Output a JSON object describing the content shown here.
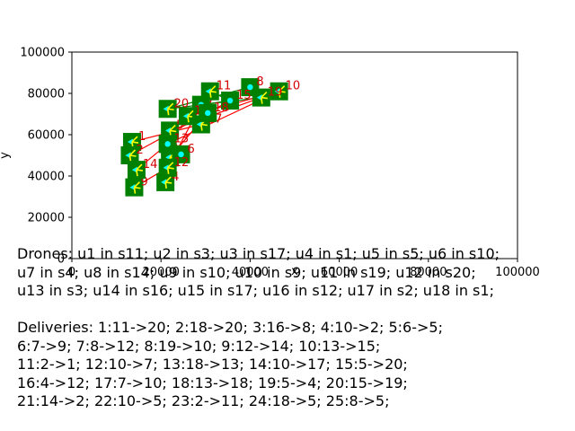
{
  "chart_data": {
    "type": "scatter",
    "title": "",
    "xlabel": "x",
    "ylabel": "y",
    "xlim": [
      0,
      100000
    ],
    "ylim": [
      0,
      100000
    ],
    "x_ticks": [
      0,
      20000,
      40000,
      60000,
      80000,
      100000
    ],
    "y_ticks": [
      0,
      20000,
      40000,
      60000,
      80000,
      100000
    ],
    "grid": false,
    "colors": {
      "station_fill": "#008000",
      "station_marker": "#00ffff",
      "drone_marker": "#ffff00",
      "route_red": "#ff0000",
      "route_green": "#008000",
      "label": "#d40000"
    },
    "stations": [
      {
        "label": "1",
        "x": 13500,
        "y": 56500
      },
      {
        "label": "2",
        "x": 13000,
        "y": 50000
      },
      {
        "label": "3",
        "x": 22000,
        "y": 49000
      },
      {
        "label": "4",
        "x": 21000,
        "y": 37000
      },
      {
        "label": "5",
        "x": 22000,
        "y": 62000
      },
      {
        "label": "6",
        "x": 24500,
        "y": 50500
      },
      {
        "label": "7",
        "x": 29000,
        "y": 74500
      },
      {
        "label": "8",
        "x": 40000,
        "y": 83000
      },
      {
        "label": "9",
        "x": 14000,
        "y": 34500
      },
      {
        "label": "10",
        "x": 46500,
        "y": 81000
      },
      {
        "label": "11",
        "x": 31000,
        "y": 81000
      },
      {
        "label": "12",
        "x": 21500,
        "y": 44000
      },
      {
        "label": "13",
        "x": 21500,
        "y": 55500
      },
      {
        "label": "14",
        "x": 14500,
        "y": 43000
      },
      {
        "label": "15",
        "x": 35500,
        "y": 76500
      },
      {
        "label": "16",
        "x": 26000,
        "y": 69000
      },
      {
        "label": "17",
        "x": 29000,
        "y": 65000
      },
      {
        "label": "18",
        "x": 30500,
        "y": 70500
      },
      {
        "label": "19",
        "x": 42500,
        "y": 78000
      },
      {
        "label": "20",
        "x": 21500,
        "y": 72500
      }
    ],
    "drones_at_stations": [
      "11",
      "3",
      "17",
      "1",
      "5",
      "10",
      "4",
      "14",
      "10",
      "9",
      "19",
      "20",
      "3",
      "16",
      "17",
      "12",
      "2",
      "1"
    ],
    "routes": [
      {
        "from": "20",
        "to": "19",
        "color": "green"
      },
      {
        "from": "20",
        "to": "8",
        "color": "green"
      },
      {
        "from": "8",
        "to": "19",
        "color": "green"
      },
      {
        "from": "13",
        "to": "10",
        "color": "red"
      },
      {
        "from": "2",
        "to": "15",
        "color": "red"
      },
      {
        "from": "5",
        "to": "19",
        "color": "red"
      },
      {
        "from": "1",
        "to": "17",
        "color": "red"
      },
      {
        "from": "9",
        "to": "12",
        "color": "red"
      },
      {
        "from": "14",
        "to": "13",
        "color": "red"
      },
      {
        "from": "3",
        "to": "18",
        "color": "red"
      },
      {
        "from": "12",
        "to": "7",
        "color": "red"
      },
      {
        "from": "16",
        "to": "10",
        "color": "red"
      },
      {
        "from": "6",
        "to": "5",
        "color": "red"
      },
      {
        "from": "4",
        "to": "12",
        "color": "red"
      },
      {
        "from": "11",
        "to": "15",
        "color": "green"
      },
      {
        "from": "7",
        "to": "15",
        "color": "green"
      }
    ]
  },
  "caption": {
    "drones_lines": [
      "Drones: u1 in s11; u2 in s3; u3 in s17; u4 in s1; u5 in s5; u6 in s10;",
      "u7 in s4; u8 in s14; u9 in s10; u10 in s9; u11 in s19; u12 in s20;",
      "u13 in s3; u14 in s16; u15 in s17; u16 in s12; u17 in s2; u18 in s1;"
    ],
    "deliveries_lines": [
      "Deliveries: 1:11->20; 2:18->20; 3:16->8; 4:10->2; 5:6->5;",
      "6:7->9; 7:8->12; 8:19->10; 9:12->14; 10:13->15;",
      "11:2->1; 12:10->7; 13:18->13; 14:10->17; 15:5->20;",
      "16:4->12; 17:7->10; 18:13->18; 19:5->4; 20:15->19;",
      "21:14->2; 22:10->5; 23:2->11; 24:18->5; 25:8->5;"
    ]
  }
}
